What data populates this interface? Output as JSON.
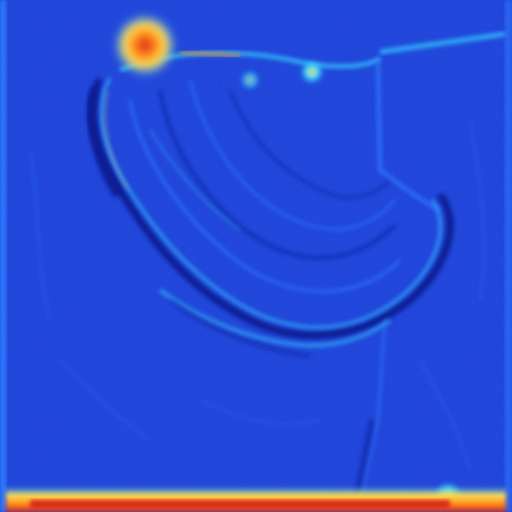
{
  "image": {
    "kind": "heatmap-style edge/gradient visualization",
    "colormap": "jet",
    "colors": {
      "background": "#1a3fd6",
      "background_dark": "#0c2bb8",
      "edge_light": "#2f7cff",
      "edge_cyan": "#33d6ff",
      "edge_dark": "#071a8f",
      "hot_yellow": "#ffe14a",
      "hot_orange": "#ff8a1a",
      "hot_red": "#d61a1a"
    }
  }
}
